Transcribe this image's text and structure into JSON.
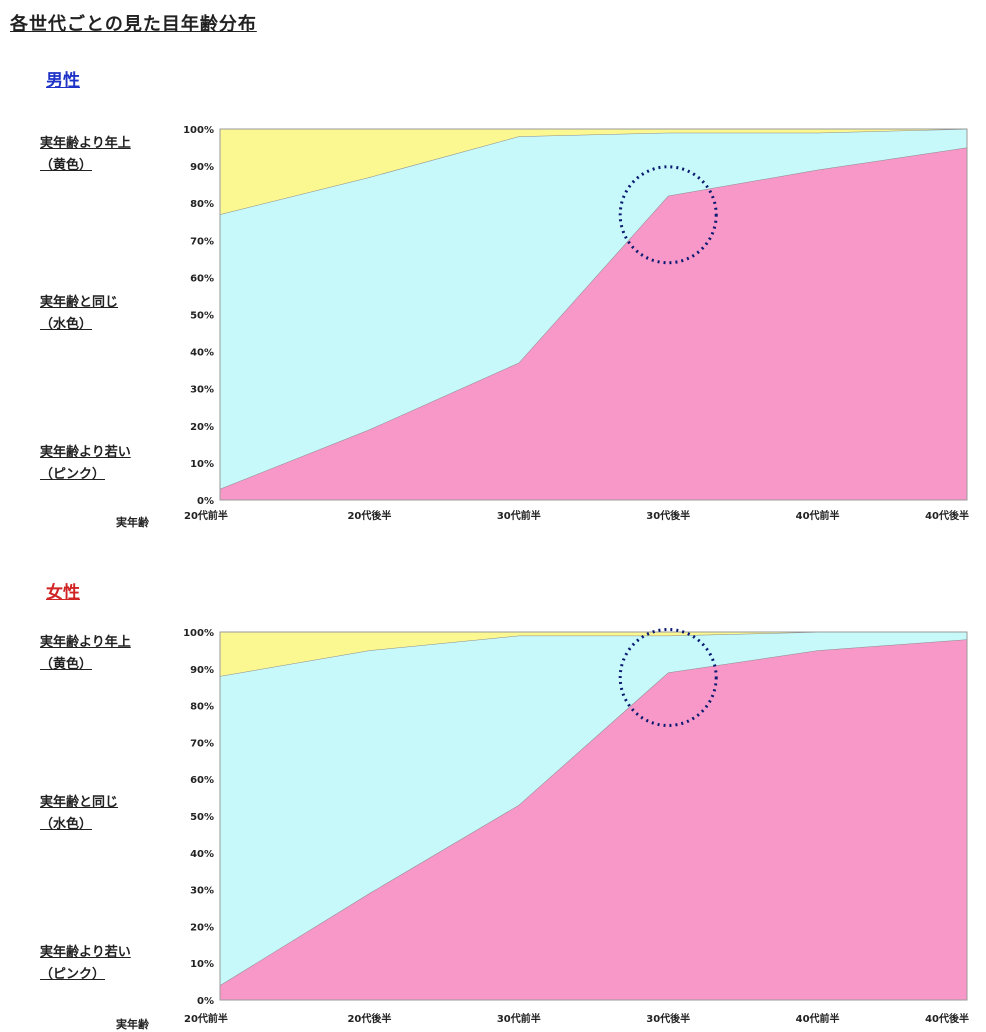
{
  "title": "各世代ごとの見た目年齢分布",
  "axis_prefix": "実年齢",
  "colors": {
    "older": "#fbf791",
    "same": "#c7f9fb",
    "younger": "#f898c8",
    "circle": "#0a1a70"
  },
  "charts": [
    {
      "section": "男性",
      "labels": {
        "older": [
          "実年齢より年上",
          "（黄色）"
        ],
        "same": [
          "実年齢と同じ",
          "（水色）"
        ],
        "younger": [
          "実年齢より若い",
          "（ピンク）"
        ]
      }
    },
    {
      "section": "女性",
      "labels": {
        "older": [
          "実年齢より年上",
          "（黄色）"
        ],
        "same": [
          "実年齢と同じ",
          "（水色）"
        ],
        "younger": [
          "実年齢より若い",
          "（ピンク）"
        ]
      }
    }
  ],
  "chart_data": [
    {
      "type": "area",
      "stacked": true,
      "categories": [
        "20代前半",
        "20代後半",
        "30代前半",
        "30代後半",
        "40代前半",
        "40代後半"
      ],
      "ylim": [
        0,
        100
      ],
      "yticks": [
        "0%",
        "10%",
        "20%",
        "30%",
        "40%",
        "50%",
        "60%",
        "70%",
        "80%",
        "90%",
        "100%"
      ],
      "series": [
        {
          "name": "実年齢より若い",
          "values": [
            3,
            19,
            37,
            82,
            89,
            95
          ]
        },
        {
          "name": "実年齢と同じ",
          "values": [
            74,
            68,
            61,
            17,
            10,
            5
          ]
        },
        {
          "name": "実年齢より年上",
          "values": [
            23,
            13,
            2,
            1,
            1,
            0
          ]
        }
      ],
      "highlight_category": "30代後半"
    },
    {
      "type": "area",
      "stacked": true,
      "categories": [
        "20代前半",
        "20代後半",
        "30代前半",
        "30代後半",
        "40代前半",
        "40代後半"
      ],
      "ylim": [
        0,
        100
      ],
      "yticks": [
        "0%",
        "10%",
        "20%",
        "30%",
        "40%",
        "50%",
        "60%",
        "70%",
        "80%",
        "90%",
        "100%"
      ],
      "series": [
        {
          "name": "実年齢より若い",
          "values": [
            4,
            29,
            53,
            89,
            95,
            98
          ]
        },
        {
          "name": "実年齢と同じ",
          "values": [
            84,
            66,
            46,
            10,
            5,
            2
          ]
        },
        {
          "name": "実年齢より年上",
          "values": [
            12,
            5,
            1,
            1,
            0,
            0
          ]
        }
      ],
      "highlight_category": "30代後半"
    }
  ]
}
